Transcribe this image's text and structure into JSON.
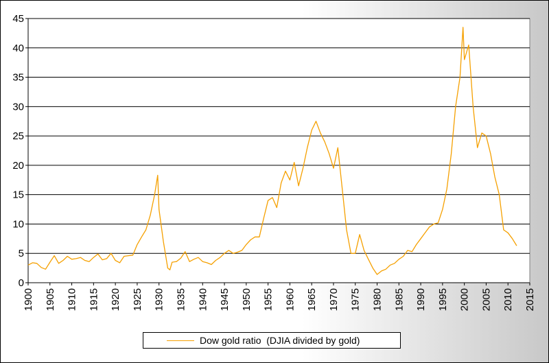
{
  "chart_data": {
    "type": "line",
    "title": "",
    "xlabel": "",
    "ylabel": "",
    "xlim": [
      1900,
      2015
    ],
    "ylim": [
      0,
      45
    ],
    "x_ticks": [
      1900,
      1905,
      1910,
      1915,
      1920,
      1925,
      1930,
      1935,
      1940,
      1945,
      1950,
      1955,
      1960,
      1965,
      1970,
      1975,
      1980,
      1985,
      1990,
      1995,
      2000,
      2005,
      2010,
      2015
    ],
    "y_ticks": [
      0,
      5,
      10,
      15,
      20,
      25,
      30,
      35,
      40,
      45
    ],
    "grid": "horizontal",
    "legend_position": "bottom",
    "colors": {
      "line": "#f5a000",
      "plot_background": "#ffffff",
      "grid": "#000000"
    },
    "series": [
      {
        "name": "Dow gold ratio  (DJIA divided by gold)",
        "x": [
          1900,
          1901,
          1902,
          1903,
          1904,
          1905,
          1906,
          1907,
          1908,
          1909,
          1910,
          1911,
          1912,
          1913,
          1914,
          1915,
          1916,
          1917,
          1918,
          1919,
          1920,
          1921,
          1922,
          1923,
          1924,
          1925,
          1926,
          1927,
          1928,
          1929,
          1929.7,
          1930,
          1931,
          1932,
          1932.5,
          1933,
          1934,
          1935,
          1936,
          1937,
          1938,
          1939,
          1940,
          1941,
          1942,
          1943,
          1944,
          1945,
          1946,
          1947,
          1948,
          1949,
          1950,
          1951,
          1952,
          1953,
          1954,
          1955,
          1956,
          1957,
          1958,
          1959,
          1960,
          1961,
          1962,
          1963,
          1964,
          1965,
          1966,
          1967,
          1968,
          1969,
          1970,
          1971,
          1972,
          1973,
          1974,
          1975,
          1976,
          1977,
          1978,
          1979,
          1980,
          1981,
          1982,
          1983,
          1984,
          1985,
          1986,
          1987,
          1988,
          1989,
          1990,
          1991,
          1992,
          1993,
          1994,
          1995,
          1996,
          1997,
          1998,
          1999,
          1999.7,
          2000,
          2001,
          2002,
          2003,
          2004,
          2005,
          2006,
          2007,
          2008,
          2009,
          2010,
          2011,
          2012
        ],
        "values": [
          3.0,
          3.4,
          3.3,
          2.6,
          2.3,
          3.5,
          4.6,
          3.3,
          3.8,
          4.5,
          4.0,
          4.1,
          4.3,
          3.8,
          3.6,
          4.3,
          4.9,
          3.9,
          4.1,
          5.0,
          3.8,
          3.4,
          4.5,
          4.6,
          4.7,
          6.5,
          7.8,
          9.0,
          11.5,
          15.0,
          18.3,
          12.5,
          7.0,
          2.5,
          2.2,
          3.5,
          3.6,
          4.2,
          5.3,
          3.6,
          4.0,
          4.3,
          3.6,
          3.4,
          3.1,
          3.8,
          4.3,
          5.0,
          5.5,
          5.0,
          5.2,
          5.5,
          6.5,
          7.3,
          7.8,
          7.8,
          11.0,
          14.0,
          14.5,
          12.8,
          17.0,
          19.0,
          17.5,
          20.5,
          16.5,
          19.5,
          23.0,
          26.0,
          27.5,
          25.5,
          24.0,
          22.0,
          19.5,
          23.0,
          16.0,
          9.0,
          5.0,
          5.0,
          8.2,
          5.5,
          4.0,
          2.5,
          1.4,
          2.0,
          2.3,
          3.0,
          3.3,
          4.0,
          4.5,
          5.5,
          5.3,
          6.5,
          7.5,
          8.5,
          9.5,
          10.0,
          10.2,
          12.5,
          16.0,
          22.0,
          30.0,
          35.0,
          43.5,
          38.0,
          40.5,
          30.0,
          23.0,
          25.5,
          25.0,
          22.0,
          18.0,
          15.0,
          9.0,
          8.5,
          7.5,
          6.3
        ]
      }
    ]
  }
}
